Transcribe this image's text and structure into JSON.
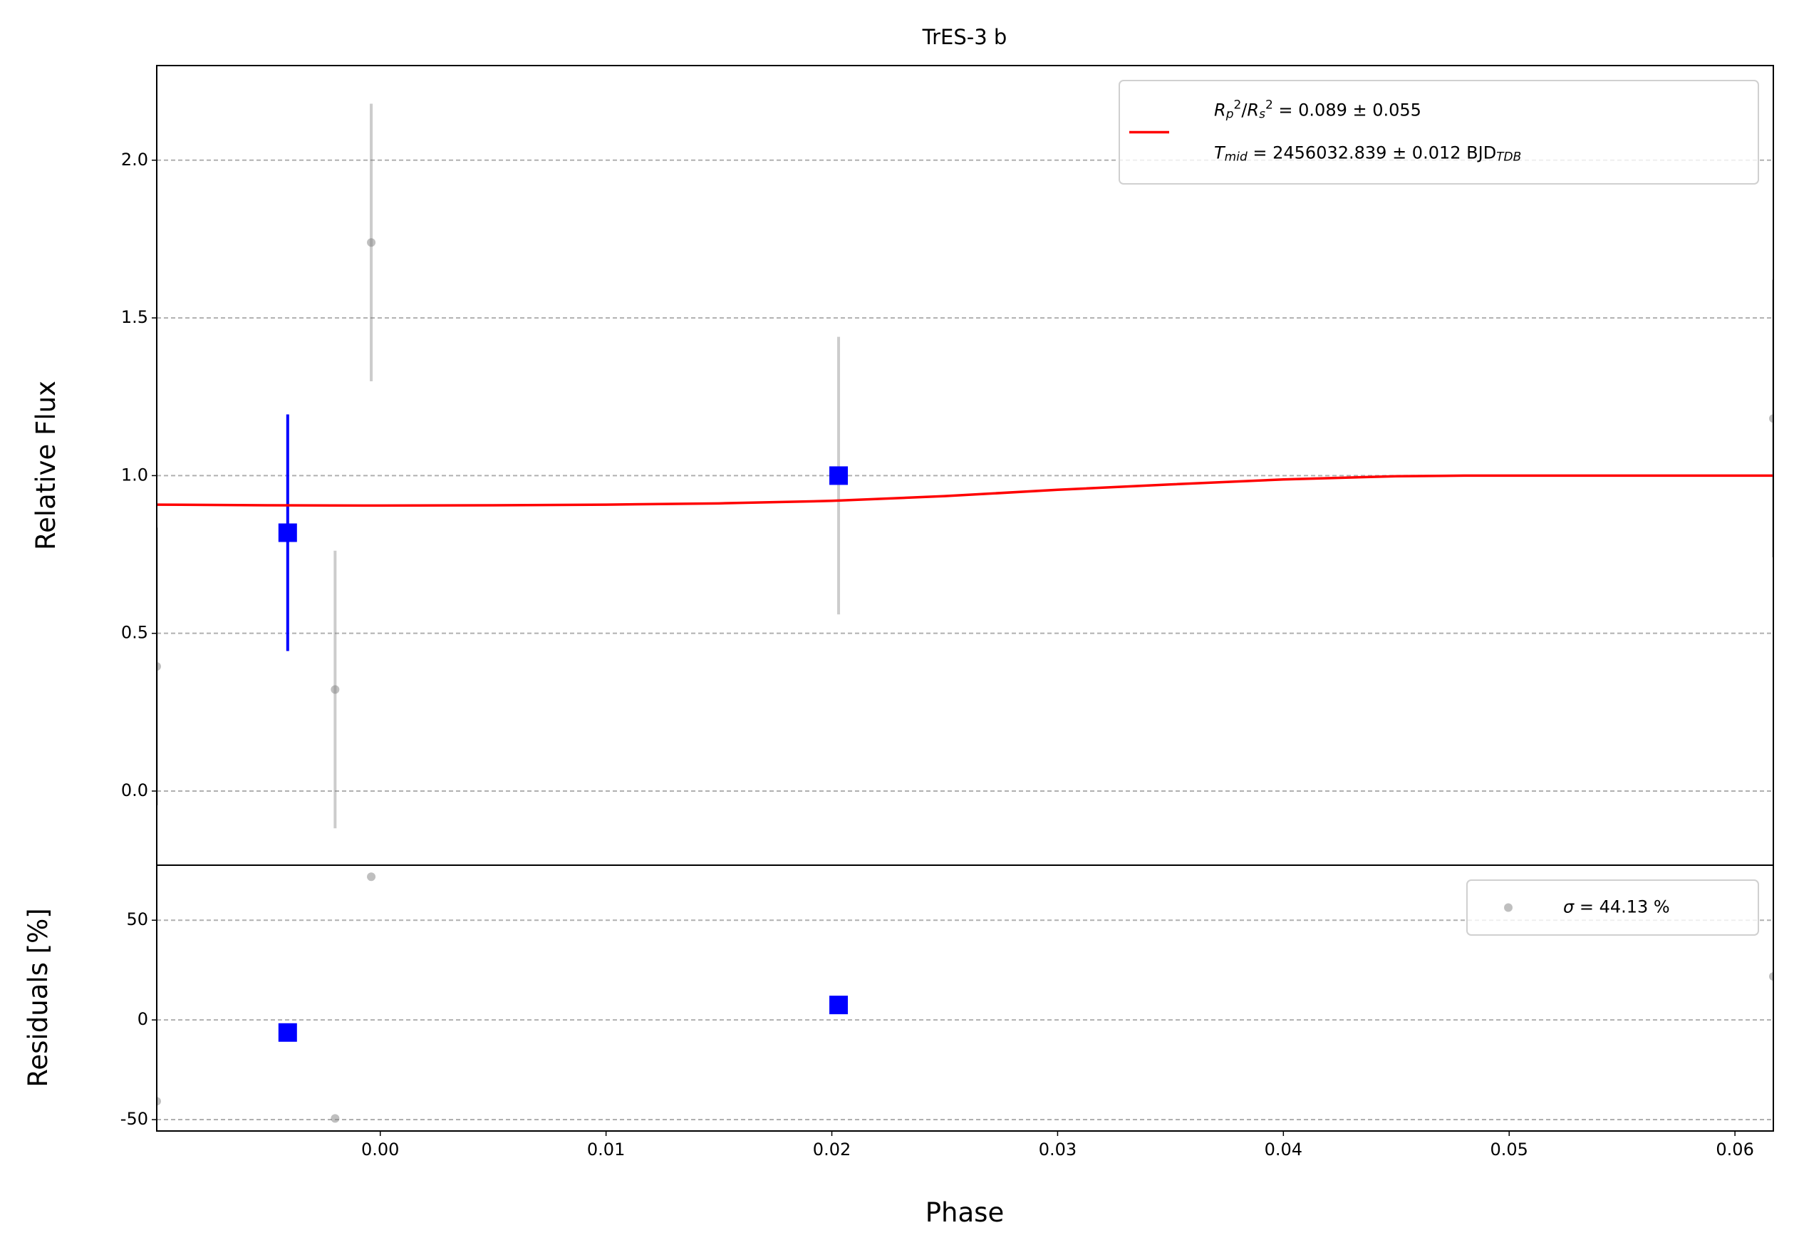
{
  "chart_data": [
    {
      "type": "scatter",
      "title": "TrES-3 b",
      "ylabel": "Relative Flux",
      "xlim": [
        -0.0099,
        0.0617
      ],
      "ylim": [
        -0.235,
        2.3
      ],
      "yticks": [
        {
          "value": 0,
          "label": "0.0"
        },
        0.5,
        {
          "value": 1,
          "label": "1.0"
        },
        1.5,
        {
          "value": 2,
          "label": "2.0"
        }
      ],
      "grid": true,
      "legend": "upper right",
      "series": [
        {
          "role": "data",
          "color": "#808080",
          "x": [
            -0.0099,
            -0.002,
            -0.0004,
            0.0203,
            0.0617
          ],
          "values": [
            0.395,
            0.322,
            1.739,
            1.0,
            1.181
          ],
          "errors": [
            0.44,
            0.44,
            0.44,
            0.44,
            0.44
          ]
        },
        {
          "role": "binned",
          "color": "#0000ff",
          "x": [
            -0.0041,
            0.0203
          ],
          "values": [
            0.819,
            1.0
          ],
          "errors": [
            0.375,
            0
          ]
        },
        {
          "role": "model",
          "color": "#ff0000",
          "x": [
            -0.0099,
            -0.005,
            0,
            0.005,
            0.01,
            0.015,
            0.02,
            0.025,
            0.03,
            0.035,
            0.04,
            0.045,
            0.048,
            0.055,
            0.0617
          ],
          "values": [
            0.908,
            0.906,
            0.905,
            0.906,
            0.908,
            0.912,
            0.92,
            0.935,
            0.955,
            0.972,
            0.988,
            0.998,
            1.0,
            1.0,
            1.0
          ],
          "name_lines": [
            [
              {
                "t": "R",
                "style": "italic"
              },
              {
                "t": "p",
                "style": "sub"
              },
              {
                "t": "2",
                "style": "sup"
              },
              {
                "t": "/"
              },
              {
                "t": "R",
                "style": "italic"
              },
              {
                "t": "s",
                "style": "sub"
              },
              {
                "t": "2",
                "style": "sup"
              },
              {
                "t": " = 0.089 ± 0.055"
              }
            ],
            [
              {
                "t": "T",
                "style": "italic"
              },
              {
                "t": "mid",
                "style": "sub"
              },
              {
                "t": " = 2456032.839 ± 0.012 BJD"
              },
              {
                "t": "TDB",
                "style": "sub"
              }
            ]
          ]
        }
      ]
    },
    {
      "type": "scatter",
      "xlabel": "Phase",
      "ylabel": "Residuals [%]",
      "xlim": [
        -0.0099,
        0.0617
      ],
      "xticks": [
        {
          "value": 0,
          "label": "0.00"
        },
        0.01,
        0.02,
        0.03,
        0.04,
        0.05,
        0.06
      ],
      "ylim": [
        -55.7,
        77.6
      ],
      "yticks": [
        -50,
        0,
        50
      ],
      "grid": true,
      "legend": "upper right",
      "series": [
        {
          "role": "data",
          "color": "#808080",
          "x": [
            -0.0099,
            -0.002,
            -0.0004,
            0.0203,
            0.0617
          ],
          "values": [
            -40.8,
            -49.4,
            71.8,
            7.5,
            21.8
          ],
          "name_lines": [
            [
              {
                "t": "σ",
                "style": "italic"
              },
              {
                "t": " = 44.13 %"
              }
            ]
          ]
        },
        {
          "role": "binned",
          "color": "#0000ff",
          "x": [
            -0.0041,
            0.0203
          ],
          "values": [
            -6.3,
            7.5
          ]
        }
      ]
    }
  ]
}
